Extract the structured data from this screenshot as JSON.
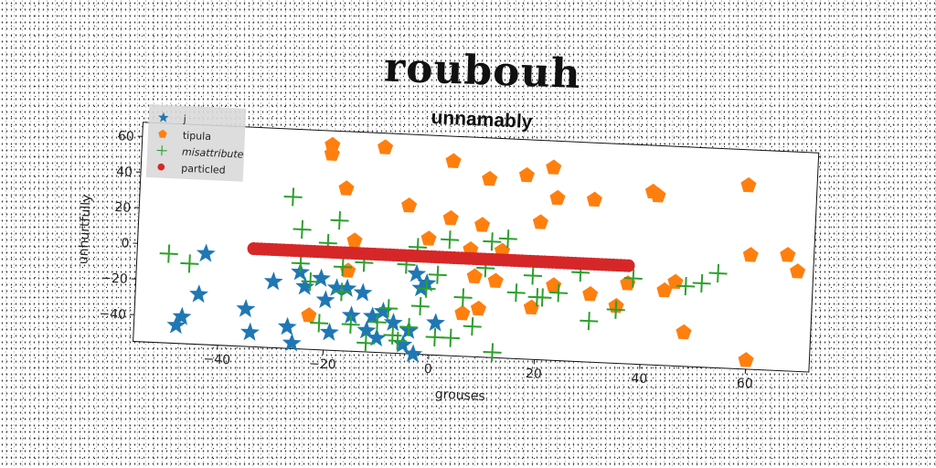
{
  "header": {
    "main_title": "roubouh"
  },
  "chart_data": {
    "type": "scatter",
    "title": "unnamably",
    "xlabel": "grouses",
    "ylabel": "unhurtfully",
    "xlim": [
      -56,
      72
    ],
    "ylim": [
      -55,
      68
    ],
    "xticks": [
      -40,
      -20,
      0,
      20,
      40,
      60
    ],
    "yticks": [
      -40,
      -20,
      0,
      20,
      40,
      60
    ],
    "legend_position": "upper-left",
    "series": [
      {
        "name": "j",
        "marker": "star",
        "color": "#1f77b4",
        "points": [
          [
            -47,
            -40
          ],
          [
            -48,
            -45
          ],
          [
            -44,
            -27
          ],
          [
            -43,
            -4
          ],
          [
            -35,
            -34
          ],
          [
            -34,
            -47
          ],
          [
            -30,
            -18
          ],
          [
            -27,
            -43
          ],
          [
            -26,
            -52
          ],
          [
            -25,
            -12
          ],
          [
            -24,
            -20
          ],
          [
            -21,
            -15
          ],
          [
            -20,
            -27
          ],
          [
            -19,
            -45
          ],
          [
            -18,
            -20
          ],
          [
            -16,
            -20
          ],
          [
            -15,
            -35
          ],
          [
            -13,
            -22
          ],
          [
            -12,
            -43
          ],
          [
            -11,
            -35
          ],
          [
            -10,
            -47
          ],
          [
            -9,
            -32
          ],
          [
            -7,
            -38
          ],
          [
            -5,
            -50
          ],
          [
            -4,
            -42
          ],
          [
            -3,
            -55
          ],
          [
            -2,
            -18
          ],
          [
            -1,
            -15
          ],
          [
            1,
            -37
          ],
          [
            -3,
            -10
          ]
        ]
      },
      {
        "name": "tipula",
        "marker": "pentagon",
        "color": "#ff7f0e",
        "points": [
          [
            -20,
            60
          ],
          [
            -20,
            55
          ],
          [
            -10,
            60
          ],
          [
            -17,
            36
          ],
          [
            -15,
            7
          ],
          [
            -16,
            -10
          ],
          [
            -23,
            -36
          ],
          [
            -5,
            28
          ],
          [
            -1,
            10
          ],
          [
            3,
            22
          ],
          [
            3,
            54
          ],
          [
            6,
            -31
          ],
          [
            7,
            5
          ],
          [
            8,
            -10
          ],
          [
            9,
            -28
          ],
          [
            9,
            19
          ],
          [
            10,
            45
          ],
          [
            12,
            -12
          ],
          [
            13,
            5
          ],
          [
            17,
            48
          ],
          [
            19,
            -26
          ],
          [
            20,
            22
          ],
          [
            22,
            53
          ],
          [
            23,
            36
          ],
          [
            23,
            -13
          ],
          [
            30,
            36
          ],
          [
            30,
            -17
          ],
          [
            35,
            -23
          ],
          [
            37,
            -10
          ],
          [
            41,
            42
          ],
          [
            42,
            40
          ],
          [
            44,
            -13
          ],
          [
            46,
            -8
          ],
          [
            48,
            -36
          ],
          [
            59,
            48
          ],
          [
            60,
            9
          ],
          [
            60,
            -50
          ],
          [
            67,
            10
          ],
          [
            69,
            1
          ]
        ]
      },
      {
        "name": "misattribute",
        "marker": "plus",
        "color": "#2ca02c",
        "points": [
          [
            -50,
            -5
          ],
          [
            -46,
            -10
          ],
          [
            -27,
            30
          ],
          [
            -25,
            12
          ],
          [
            -25,
            -7
          ],
          [
            -23,
            -17
          ],
          [
            -21,
            -40
          ],
          [
            -20,
            5
          ],
          [
            -18,
            18
          ],
          [
            -17,
            -22
          ],
          [
            -17,
            -8
          ],
          [
            -15,
            -40
          ],
          [
            -13,
            -5
          ],
          [
            -12,
            -50
          ],
          [
            -10,
            -38
          ],
          [
            -8,
            -30
          ],
          [
            -7,
            -45
          ],
          [
            -6,
            -48
          ],
          [
            -5,
            -5
          ],
          [
            -4,
            -40
          ],
          [
            -3,
            5
          ],
          [
            -2,
            -28
          ],
          [
            -1,
            -18
          ],
          [
            1,
            -10
          ],
          [
            1,
            -45
          ],
          [
            3,
            10
          ],
          [
            4,
            -45
          ],
          [
            6,
            -22
          ],
          [
            8,
            -38
          ],
          [
            10,
            -5
          ],
          [
            11,
            10
          ],
          [
            12,
            -52
          ],
          [
            14,
            12
          ],
          [
            16,
            -18
          ],
          [
            19,
            -8
          ],
          [
            20,
            -20
          ],
          [
            21,
            -20
          ],
          [
            24,
            -17
          ],
          [
            28,
            -5
          ],
          [
            30,
            -32
          ],
          [
            35,
            -25
          ],
          [
            38,
            -7
          ],
          [
            48,
            -10
          ],
          [
            51,
            -8
          ],
          [
            54,
            -2
          ]
        ]
      },
      {
        "name": "particled",
        "marker": "circle",
        "color": "#d62728",
        "line": {
          "x_start": -34,
          "x_end": 37,
          "y": 0,
          "points": 100
        }
      }
    ]
  }
}
